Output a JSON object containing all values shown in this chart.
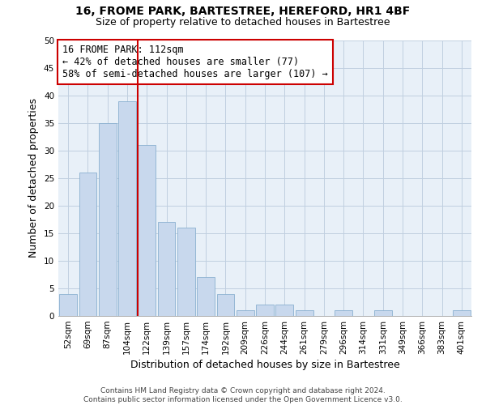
{
  "title": "16, FROME PARK, BARTESTREE, HEREFORD, HR1 4BF",
  "subtitle": "Size of property relative to detached houses in Bartestree",
  "xlabel": "Distribution of detached houses by size in Bartestree",
  "ylabel": "Number of detached properties",
  "bar_labels": [
    "52sqm",
    "69sqm",
    "87sqm",
    "104sqm",
    "122sqm",
    "139sqm",
    "157sqm",
    "174sqm",
    "192sqm",
    "209sqm",
    "226sqm",
    "244sqm",
    "261sqm",
    "279sqm",
    "296sqm",
    "314sqm",
    "331sqm",
    "349sqm",
    "366sqm",
    "383sqm",
    "401sqm"
  ],
  "bar_values": [
    4,
    26,
    35,
    39,
    31,
    17,
    16,
    7,
    4,
    1,
    2,
    2,
    1,
    0,
    1,
    0,
    1,
    0,
    0,
    0,
    1
  ],
  "bar_color": "#c8d8ed",
  "bar_edge_color": "#8ab0d0",
  "vline_x": 3.55,
  "vline_color": "#cc0000",
  "ylim": [
    0,
    50
  ],
  "yticks": [
    0,
    5,
    10,
    15,
    20,
    25,
    30,
    35,
    40,
    45,
    50
  ],
  "annotation_title": "16 FROME PARK: 112sqm",
  "annotation_line1": "← 42% of detached houses are smaller (77)",
  "annotation_line2": "58% of semi-detached houses are larger (107) →",
  "annotation_box_edge": "#cc0000",
  "footer_line1": "Contains HM Land Registry data © Crown copyright and database right 2024.",
  "footer_line2": "Contains public sector information licensed under the Open Government Licence v3.0.",
  "bg_color": "#ffffff",
  "plot_bg_color": "#e8f0f8",
  "grid_color": "#c0cfe0",
  "title_fontsize": 10,
  "subtitle_fontsize": 9,
  "axis_label_fontsize": 9,
  "tick_fontsize": 7.5,
  "annotation_fontsize": 8.5,
  "footer_fontsize": 6.5
}
